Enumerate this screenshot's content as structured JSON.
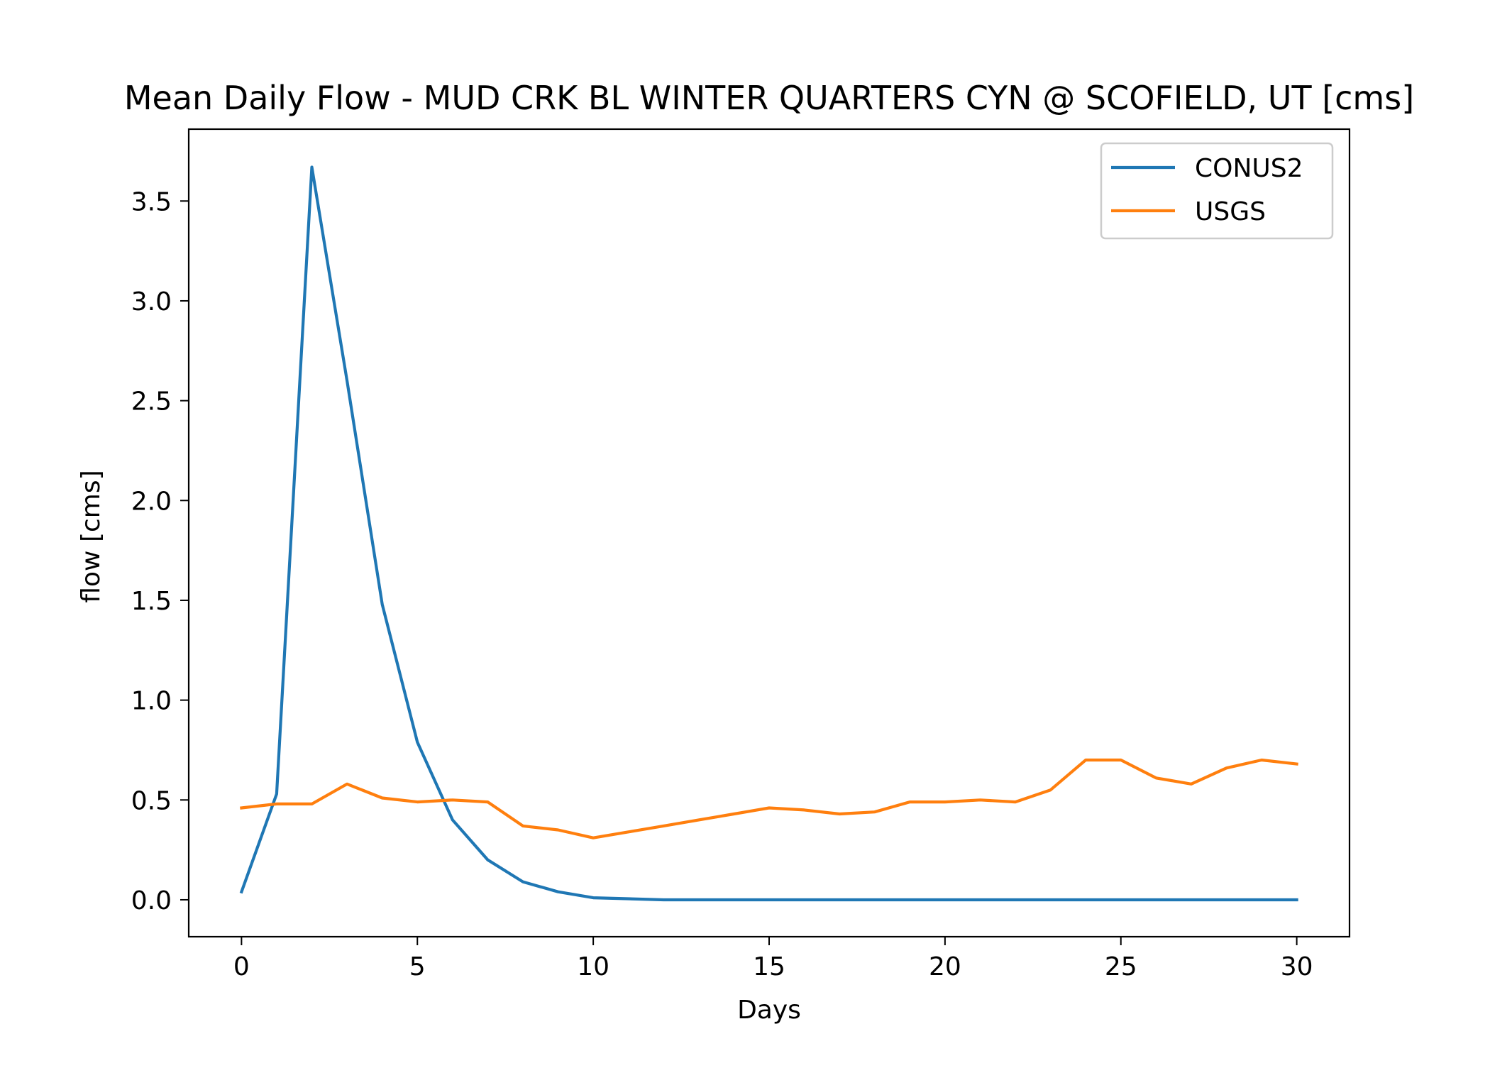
{
  "chart_data": {
    "type": "line",
    "title": "Mean Daily Flow - MUD CRK BL WINTER QUARTERS CYN @ SCOFIELD, UT [cms]",
    "xlabel": "Days",
    "ylabel": "flow [cms]",
    "xlim": [
      -1.5,
      31.5
    ],
    "ylim": [
      -0.185,
      3.86
    ],
    "xticks": [
      0,
      5,
      10,
      15,
      20,
      25,
      30
    ],
    "xtick_labels": [
      "0",
      "5",
      "10",
      "15",
      "20",
      "25",
      "30"
    ],
    "yticks": [
      0.0,
      0.5,
      1.0,
      1.5,
      2.0,
      2.5,
      3.0,
      3.5
    ],
    "ytick_labels": [
      "0.0",
      "0.5",
      "1.0",
      "1.5",
      "2.0",
      "2.5",
      "3.0",
      "3.5"
    ],
    "grid": false,
    "legend": "top-right",
    "x": [
      0,
      1,
      2,
      3,
      4,
      5,
      6,
      7,
      8,
      9,
      10,
      11,
      12,
      13,
      14,
      15,
      16,
      17,
      18,
      19,
      20,
      21,
      22,
      23,
      24,
      25,
      26,
      27,
      28,
      29,
      30
    ],
    "series": [
      {
        "name": "CONUS2",
        "color": "#1f77b4",
        "values": [
          0.04,
          0.53,
          3.67,
          2.6,
          1.48,
          0.79,
          0.4,
          0.2,
          0.09,
          0.04,
          0.01,
          0.005,
          0,
          0,
          0,
          0,
          0,
          0,
          0,
          0,
          0,
          0,
          0,
          0,
          0,
          0,
          0,
          0,
          0,
          0,
          0
        ]
      },
      {
        "name": "USGS",
        "color": "#ff7f0e",
        "values": [
          0.46,
          0.48,
          0.48,
          0.58,
          0.51,
          0.49,
          0.5,
          0.49,
          0.37,
          0.35,
          0.31,
          0.34,
          0.37,
          0.4,
          0.43,
          0.46,
          0.45,
          0.43,
          0.44,
          0.49,
          0.49,
          0.5,
          0.49,
          0.55,
          0.7,
          0.7,
          0.61,
          0.58,
          0.66,
          0.7,
          0.68
        ]
      }
    ]
  }
}
